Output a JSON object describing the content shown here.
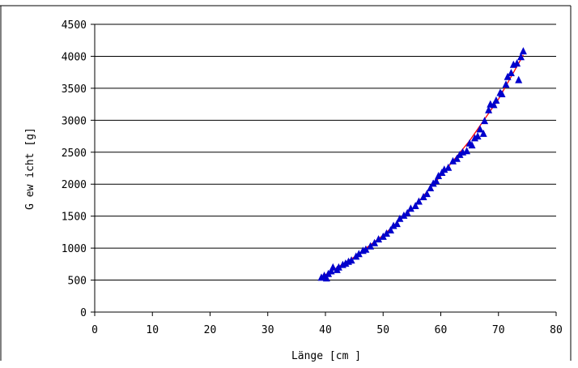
{
  "chart_data": {
    "type": "scatter",
    "title": "",
    "xlabel": "Länge [cm ]",
    "ylabel": "G ew icht [g]",
    "xlim": [
      0,
      80
    ],
    "ylim": [
      0,
      4500
    ],
    "x_ticks": [
      0,
      10,
      20,
      30,
      40,
      50,
      60,
      70,
      80
    ],
    "y_ticks": [
      0,
      500,
      1000,
      1500,
      2000,
      2500,
      3000,
      3500,
      4000,
      4500
    ],
    "grid": "horizontal",
    "legend": "none",
    "marker": "triangle",
    "marker_color": "#0000cc",
    "trend_color": "#ff0000",
    "series": [
      {
        "values": [
          [
            39.3,
            540
          ],
          [
            39.8,
            570
          ],
          [
            40.2,
            530
          ],
          [
            40.5,
            600
          ],
          [
            41.0,
            640
          ],
          [
            41.3,
            700
          ],
          [
            42.0,
            660
          ],
          [
            42.3,
            700
          ],
          [
            43.0,
            740
          ],
          [
            43.5,
            760
          ],
          [
            44.0,
            790
          ],
          [
            44.5,
            810
          ],
          [
            45.3,
            870
          ],
          [
            45.8,
            910
          ],
          [
            46.5,
            960
          ],
          [
            47.0,
            980
          ],
          [
            47.8,
            1030
          ],
          [
            48.5,
            1080
          ],
          [
            49.2,
            1140
          ],
          [
            50.0,
            1180
          ],
          [
            50.6,
            1230
          ],
          [
            51.3,
            1280
          ],
          [
            51.8,
            1350
          ],
          [
            52.4,
            1380
          ],
          [
            52.9,
            1460
          ],
          [
            53.6,
            1510
          ],
          [
            54.2,
            1550
          ],
          [
            54.8,
            1620
          ],
          [
            55.6,
            1660
          ],
          [
            56.2,
            1730
          ],
          [
            57.0,
            1800
          ],
          [
            57.6,
            1850
          ],
          [
            58.2,
            1940
          ],
          [
            58.7,
            2010
          ],
          [
            59.2,
            2050
          ],
          [
            59.6,
            2130
          ],
          [
            60.2,
            2180
          ],
          [
            60.6,
            2230
          ],
          [
            61.3,
            2260
          ],
          [
            62.1,
            2360
          ],
          [
            62.8,
            2400
          ],
          [
            63.3,
            2460
          ],
          [
            63.8,
            2500
          ],
          [
            64.5,
            2520
          ],
          [
            65.0,
            2640
          ],
          [
            65.4,
            2610
          ],
          [
            65.9,
            2720
          ],
          [
            66.4,
            2750
          ],
          [
            66.8,
            2860
          ],
          [
            67.4,
            2790
          ],
          [
            67.6,
            2990
          ],
          [
            68.3,
            3160
          ],
          [
            68.6,
            3250
          ],
          [
            69.2,
            3240
          ],
          [
            69.6,
            3310
          ],
          [
            70.3,
            3430
          ],
          [
            70.6,
            3410
          ],
          [
            71.3,
            3560
          ],
          [
            71.6,
            3680
          ],
          [
            72.2,
            3740
          ],
          [
            72.6,
            3870
          ],
          [
            73.2,
            3890
          ],
          [
            73.5,
            3630
          ],
          [
            73.9,
            3990
          ],
          [
            74.3,
            4080
          ]
        ]
      }
    ],
    "trendline": [
      [
        39.3,
        545
      ],
      [
        45,
        860
      ],
      [
        50,
        1200
      ],
      [
        55,
        1610
      ],
      [
        60,
        2130
      ],
      [
        65,
        2680
      ],
      [
        70,
        3330
      ],
      [
        74.3,
        4020
      ]
    ]
  }
}
